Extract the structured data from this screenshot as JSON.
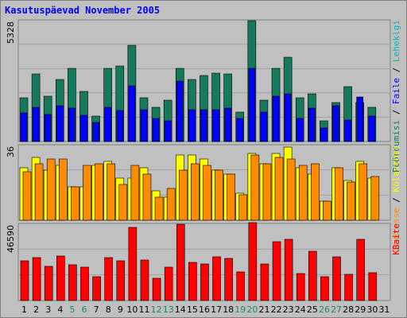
{
  "title": "Kasutuspäevad November 2005",
  "colors": {
    "background": "#c0c0c0",
    "plot_bg": "#c0c0c0",
    "grid": "#a0a0a0",
    "pages": "#157a5c",
    "files": "#0000ff",
    "visits": "#ffff00",
    "sites": "#ff8c00",
    "kbytes": "#ff0000",
    "title": "#0000ff",
    "weekend_label": "#1a8a6a",
    "day_label": "#000000"
  },
  "chart_data": [
    {
      "type": "bar",
      "panel": "hits",
      "ymax_label": "5328",
      "ylim": [
        0,
        5328
      ],
      "categories": [
        "1",
        "2",
        "3",
        "4",
        "5",
        "6",
        "7",
        "8",
        "9",
        "10",
        "11",
        "12",
        "13",
        "14",
        "15",
        "16",
        "17",
        "18",
        "19",
        "20",
        "21",
        "22",
        "23",
        "24",
        "25",
        "26",
        "27",
        "28",
        "29",
        "30",
        "31"
      ],
      "series": [
        {
          "name": "Pöördumisi",
          "values": [
            1900,
            2950,
            2000,
            2700,
            3200,
            2200,
            1100,
            3200,
            3300,
            4200,
            1900,
            1500,
            1800,
            3200,
            2700,
            2900,
            3000,
            2950,
            1300,
            5300,
            1800,
            3200,
            3700,
            1900,
            2100,
            900,
            1700,
            2400,
            1700,
            1500,
            0
          ]
        },
        {
          "name": "Faile",
          "values": [
            1250,
            1500,
            1200,
            1550,
            1450,
            1150,
            850,
            1480,
            1350,
            2450,
            1400,
            1000,
            900,
            2650,
            1400,
            1400,
            1400,
            1450,
            1000,
            3200,
            1300,
            2000,
            2100,
            1000,
            1450,
            600,
            1550,
            950,
            1950,
            1100,
            0
          ]
        }
      ]
    },
    {
      "type": "bar",
      "panel": "visits",
      "ymax_label": "36",
      "ylim": [
        0,
        36
      ],
      "categories": [
        "1",
        "2",
        "3",
        "4",
        "5",
        "6",
        "7",
        "8",
        "9",
        "10",
        "11",
        "12",
        "13",
        "14",
        "15",
        "16",
        "17",
        "18",
        "19",
        "20",
        "21",
        "22",
        "23",
        "24",
        "25",
        "26",
        "27",
        "28",
        "29",
        "30",
        "31"
      ],
      "series": [
        {
          "name": "Külastusi",
          "values": [
            25,
            30,
            24,
            26,
            16,
            16,
            26,
            28,
            20,
            20,
            25,
            14,
            11,
            31,
            31,
            29,
            24,
            22,
            13,
            32,
            27,
            32,
            35,
            25,
            22,
            9,
            25,
            19,
            28,
            20,
            0
          ]
        },
        {
          "name": "Aadresse",
          "values": [
            23,
            27,
            29,
            29,
            16,
            26,
            27,
            27,
            17,
            26,
            22,
            11,
            15,
            24,
            27,
            26,
            24,
            22,
            12,
            31,
            27,
            30,
            29,
            26,
            27,
            9,
            25,
            18,
            27,
            21,
            0
          ]
        }
      ]
    },
    {
      "type": "bar",
      "panel": "kbytes",
      "ymax_label": "46590",
      "ylim": [
        0,
        46590
      ],
      "categories": [
        "1",
        "2",
        "3",
        "4",
        "5",
        "6",
        "7",
        "8",
        "9",
        "10",
        "11",
        "12",
        "13",
        "14",
        "15",
        "16",
        "17",
        "18",
        "19",
        "20",
        "21",
        "22",
        "23",
        "24",
        "25",
        "26",
        "27",
        "28",
        "29",
        "30",
        "31"
      ],
      "series": [
        {
          "name": "KBaite",
          "values": [
            24000,
            26000,
            20500,
            27000,
            21500,
            20000,
            14500,
            26000,
            24000,
            44000,
            24500,
            13500,
            20000,
            46000,
            23000,
            22000,
            26500,
            25500,
            17500,
            47000,
            22000,
            35500,
            37000,
            16500,
            30000,
            14500,
            26500,
            16000,
            37000,
            17000,
            0
          ]
        }
      ]
    }
  ],
  "legend": {
    "hits": [
      {
        "text": "Pöördumisi",
        "color": "#157a5c"
      },
      {
        "text": " / ",
        "color": "#000000"
      },
      {
        "text": "Faile",
        "color": "#0000ff"
      },
      {
        "text": " / ",
        "color": "#000000"
      },
      {
        "text": "Leheklgi",
        "color": "#00b8b8"
      }
    ],
    "visits": [
      {
        "text": "Aadresse",
        "color": "#ff8c00"
      },
      {
        "text": " / ",
        "color": "#000000"
      },
      {
        "text": "Külastusi",
        "color": "#ffff00"
      }
    ],
    "kbytes": [
      {
        "text": "KBaite",
        "color": "#ff0000"
      }
    ]
  },
  "weekend_days": [
    "5",
    "6",
    "12",
    "13",
    "19",
    "20",
    "26",
    "27"
  ]
}
